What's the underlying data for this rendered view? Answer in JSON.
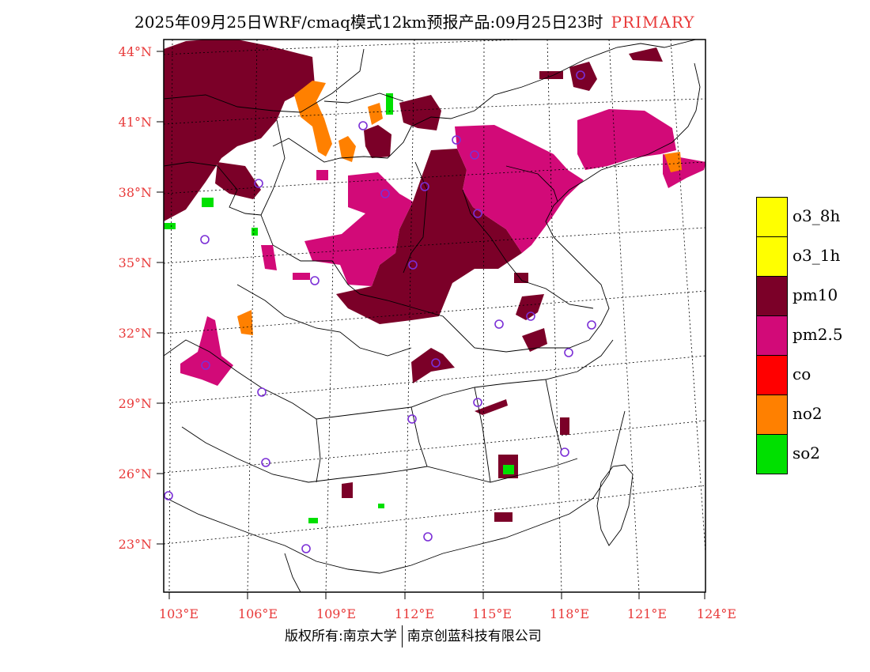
{
  "title": {
    "main": "2025年09月25日WRF/cmaq模式12km预报产品:09月25日23时",
    "tag": "PRIMARY"
  },
  "lat_labels": [
    "44°N",
    "41°N",
    "38°N",
    "35°N",
    "32°N",
    "29°N",
    "26°N",
    "23°N"
  ],
  "lon_labels": [
    "103°E",
    "106°E",
    "109°E",
    "112°E",
    "115°E",
    "118°E",
    "121°E",
    "124°E"
  ],
  "legend": [
    {
      "label": "o3_8h",
      "color": "#ffff00"
    },
    {
      "label": "o3_1h",
      "color": "#ffff00"
    },
    {
      "label": "pm10",
      "color": "#7b0028"
    },
    {
      "label": "pm2.5",
      "color": "#d20a78"
    },
    {
      "label": "co",
      "color": "#ff0000"
    },
    {
      "label": "no2",
      "color": "#ff8000"
    },
    {
      "label": "so2",
      "color": "#00e000"
    }
  ],
  "colors": {
    "pm10": "#7b0028",
    "pm25": "#d20a78",
    "no2": "#ff8000",
    "so2": "#00e000",
    "label_red": "#e83a3a",
    "station": "#7b2fd6"
  },
  "footer": {
    "left": "版权所有:南京大学",
    "right": "南京创蓝科技有限公司"
  }
}
